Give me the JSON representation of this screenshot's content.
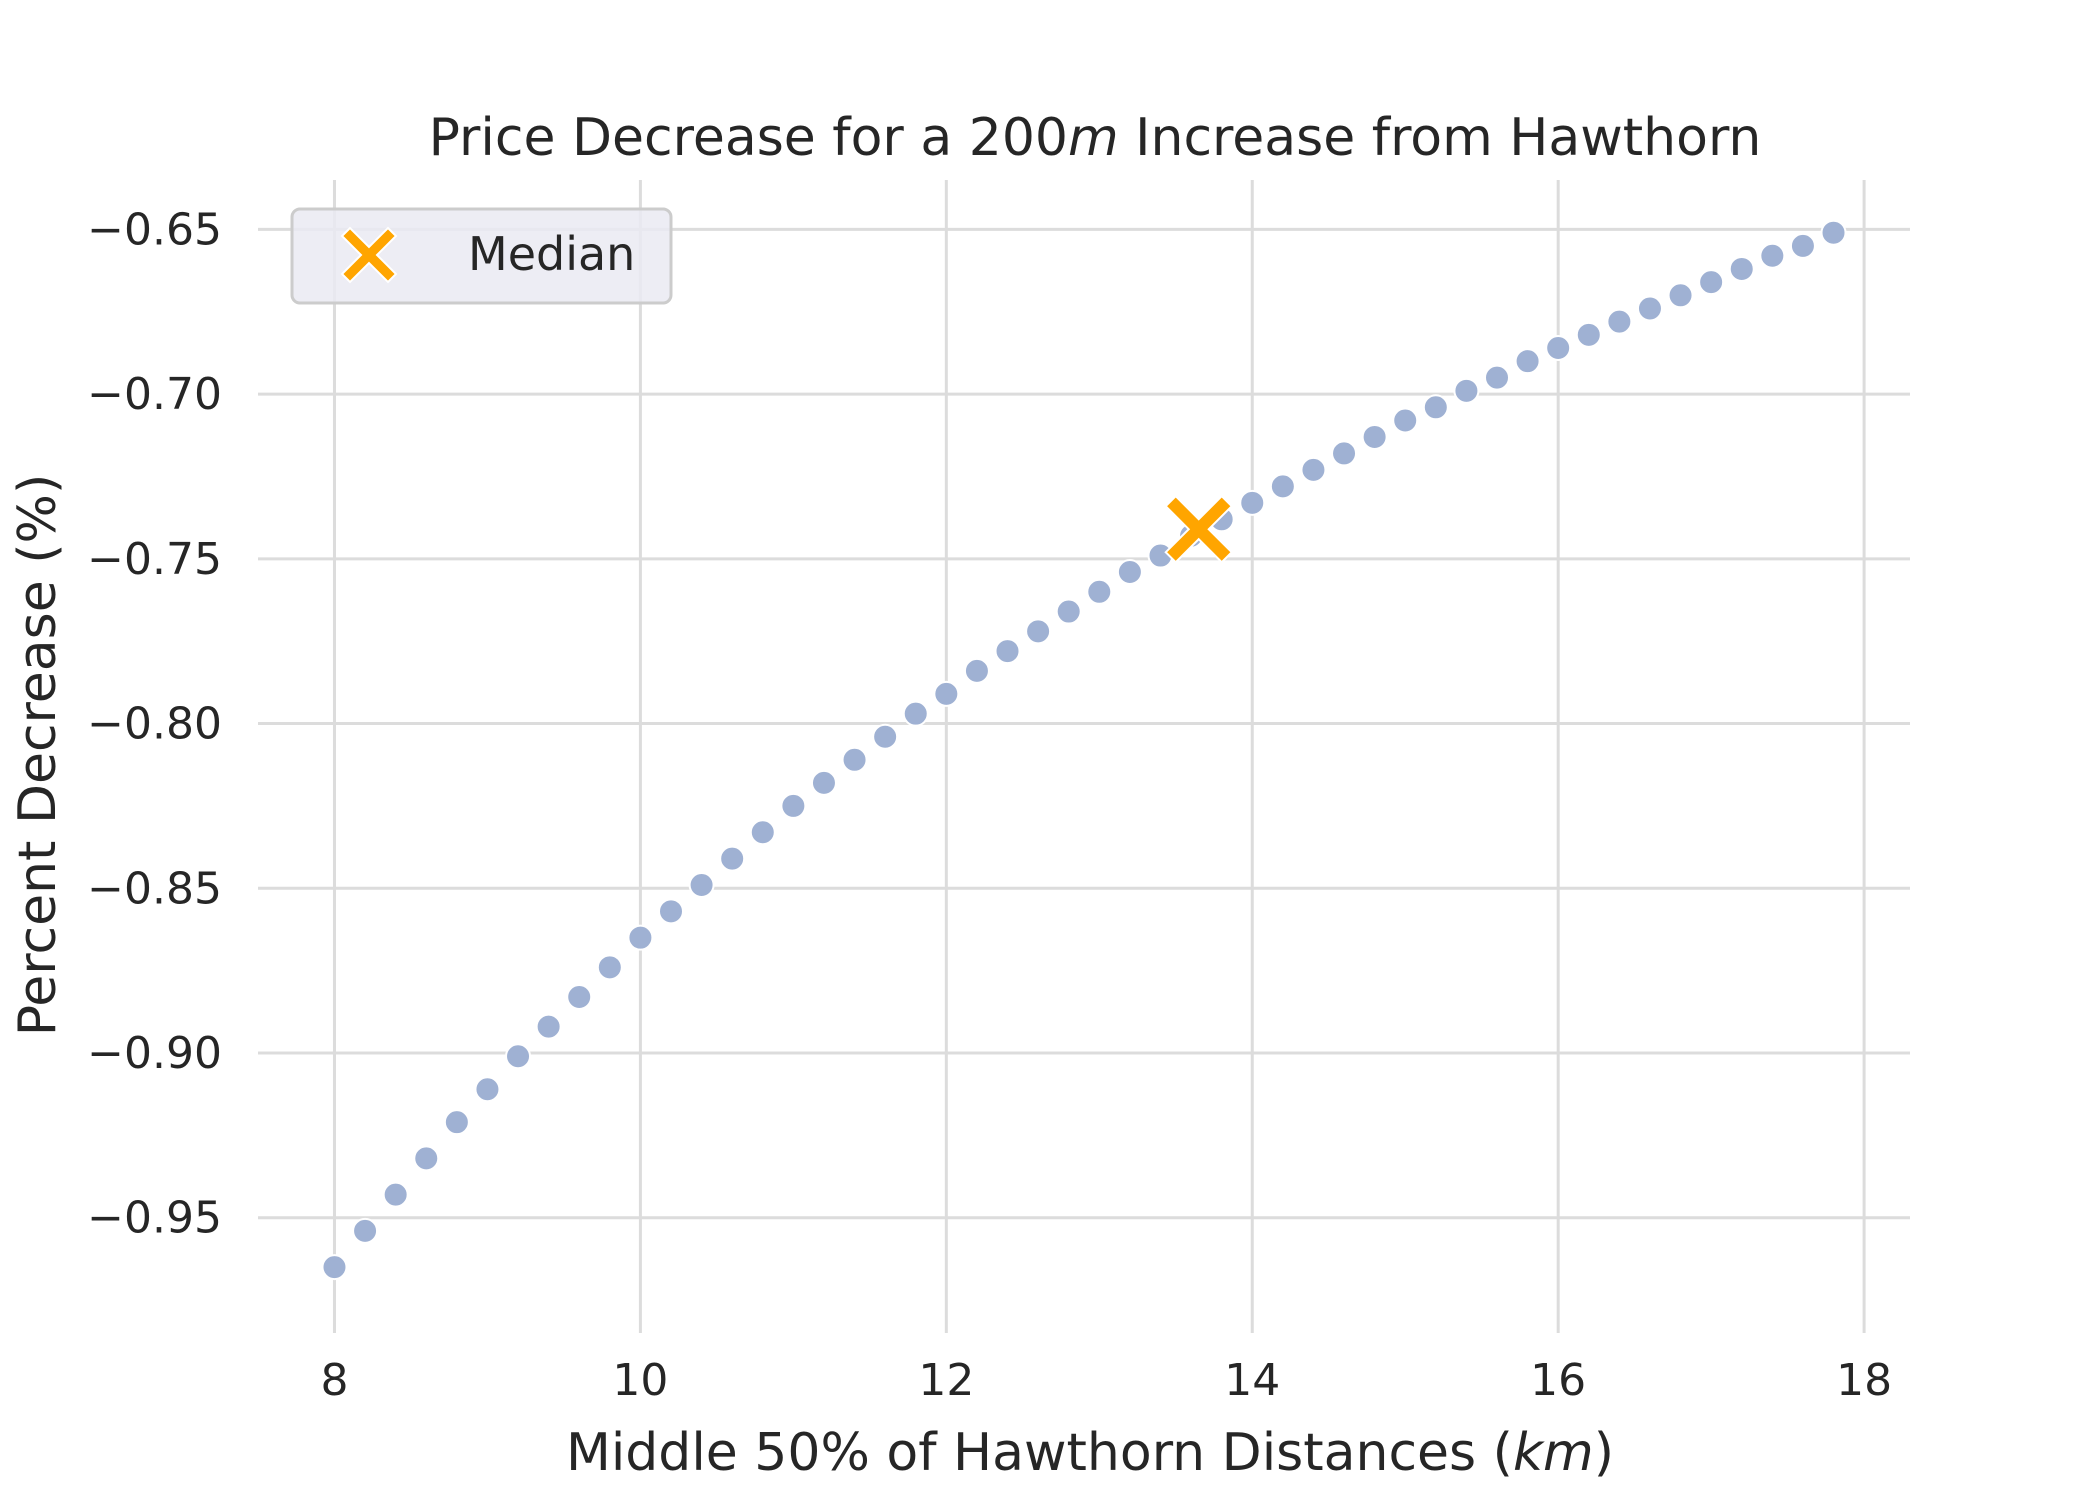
{
  "chart_data": {
    "type": "scatter",
    "title_parts": [
      "Price Decrease for a 200",
      "m",
      " Increase from Hawthorn"
    ],
    "xlabel_parts": [
      "Middle 50% of Hawthorn Distances (",
      "km",
      ")"
    ],
    "ylabel": "Percent Decrease (%)",
    "xlim": [
      7.5,
      18.3
    ],
    "ylim": [
      -0.985,
      -0.635
    ],
    "xticks": [
      8,
      10,
      12,
      14,
      16,
      18
    ],
    "xtick_labels": [
      "8",
      "10",
      "12",
      "14",
      "16",
      "18"
    ],
    "yticks": [
      -0.95,
      -0.9,
      -0.85,
      -0.8,
      -0.75,
      -0.7,
      -0.65
    ],
    "ytick_labels": [
      "−0.95",
      "−0.90",
      "−0.85",
      "−0.80",
      "−0.75",
      "−0.70",
      "−0.65"
    ],
    "grid": true,
    "legend_position": "top-left",
    "series": [
      {
        "marker": "circle",
        "color": "#9fb1d3",
        "x": [
          8.0,
          8.2,
          8.4,
          8.6,
          8.8,
          9.0,
          9.2,
          9.4,
          9.6,
          9.8,
          10.0,
          10.2,
          10.4,
          10.6,
          10.8,
          11.0,
          11.2,
          11.4,
          11.6,
          11.8,
          12.0,
          12.2,
          12.4,
          12.6,
          12.8,
          13.0,
          13.2,
          13.4,
          13.6,
          13.8,
          14.0,
          14.2,
          14.4,
          14.6,
          14.8,
          15.0,
          15.2,
          15.4,
          15.6,
          15.8,
          16.0,
          16.2,
          16.4,
          16.6,
          16.8,
          17.0,
          17.2,
          17.4,
          17.6,
          17.8
        ],
        "y": [
          -0.965,
          -0.954,
          -0.943,
          -0.932,
          -0.921,
          -0.911,
          -0.901,
          -0.892,
          -0.883,
          -0.874,
          -0.865,
          -0.857,
          -0.849,
          -0.841,
          -0.833,
          -0.825,
          -0.818,
          -0.811,
          -0.804,
          -0.797,
          -0.791,
          -0.784,
          -0.778,
          -0.772,
          -0.766,
          -0.76,
          -0.754,
          -0.749,
          -0.743,
          -0.738,
          -0.733,
          -0.728,
          -0.723,
          -0.718,
          -0.713,
          -0.708,
          -0.704,
          -0.699,
          -0.695,
          -0.69,
          -0.686,
          -0.682,
          -0.678,
          -0.674,
          -0.67,
          -0.666,
          -0.662,
          -0.658,
          -0.655,
          -0.651
        ]
      },
      {
        "name": "Median",
        "marker": "x",
        "color": "#ffa500",
        "x": [
          13.65
        ],
        "y": [
          -0.741
        ]
      }
    ]
  }
}
